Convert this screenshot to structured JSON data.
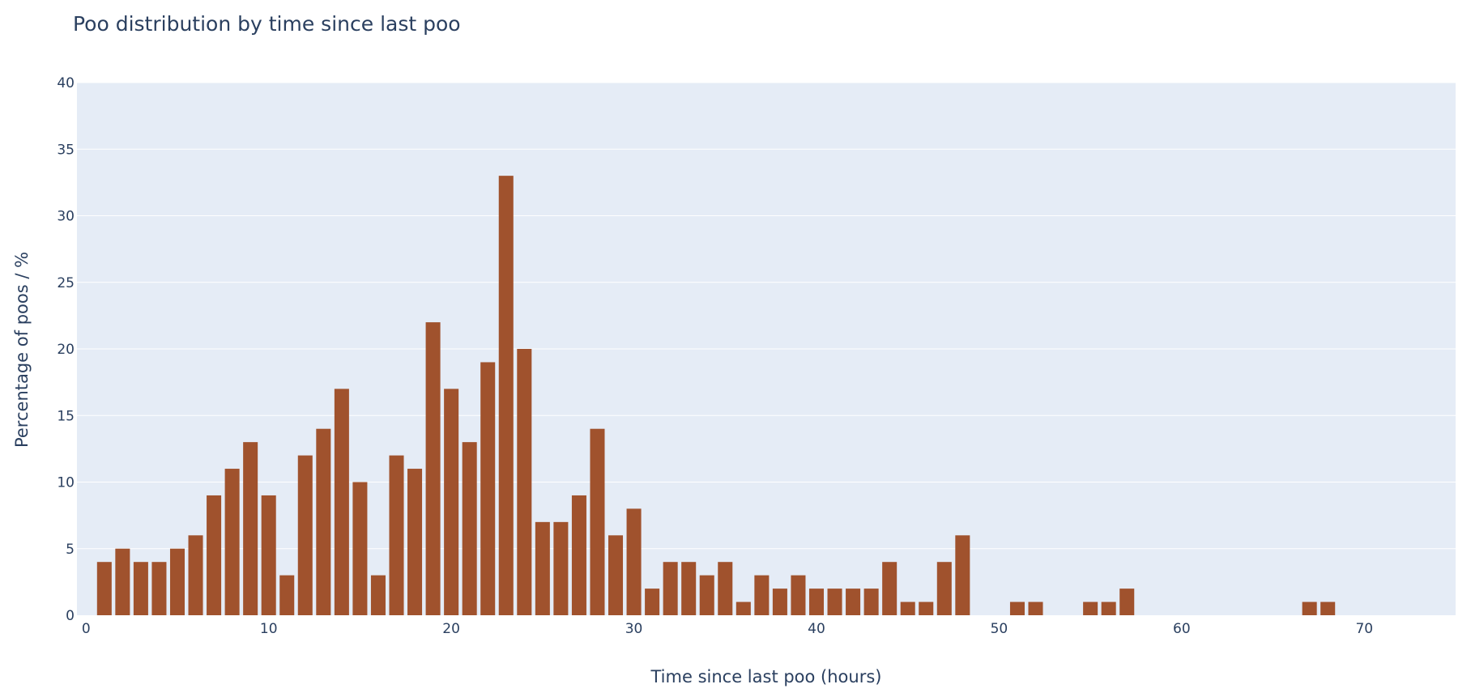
{
  "chart_data": {
    "type": "bar",
    "title": "Poo distribution by time since last poo",
    "xlabel": "Time since last poo (hours)",
    "ylabel": "Percentage of poos / %",
    "xlim": [
      -0.5,
      75
    ],
    "ylim": [
      0,
      40
    ],
    "xticks": [
      0,
      10,
      20,
      30,
      40,
      50,
      60,
      70
    ],
    "yticks": [
      0,
      5,
      10,
      15,
      20,
      25,
      30,
      35,
      40
    ],
    "bar_color": "#a0522d",
    "plot_background": "#e5ecf6",
    "grid": true,
    "x": [
      1,
      2,
      3,
      4,
      5,
      6,
      7,
      8,
      9,
      10,
      11,
      12,
      13,
      14,
      15,
      16,
      17,
      18,
      19,
      20,
      21,
      22,
      23,
      24,
      25,
      26,
      27,
      28,
      29,
      30,
      31,
      32,
      33,
      34,
      35,
      36,
      37,
      38,
      39,
      40,
      41,
      42,
      43,
      44,
      45,
      46,
      47,
      48,
      51,
      52,
      55,
      56,
      57,
      67,
      68
    ],
    "values": [
      4,
      5,
      4,
      4,
      5,
      6,
      9,
      11,
      13,
      9,
      3,
      12,
      14,
      17,
      10,
      3,
      12,
      11,
      22,
      17,
      13,
      19,
      33,
      20,
      7,
      7,
      9,
      14,
      6,
      8,
      2,
      4,
      4,
      3,
      4,
      1,
      3,
      2,
      3,
      2,
      2,
      2,
      2,
      4,
      1,
      1,
      4,
      6,
      1,
      1,
      1,
      1,
      2,
      1,
      1
    ]
  }
}
